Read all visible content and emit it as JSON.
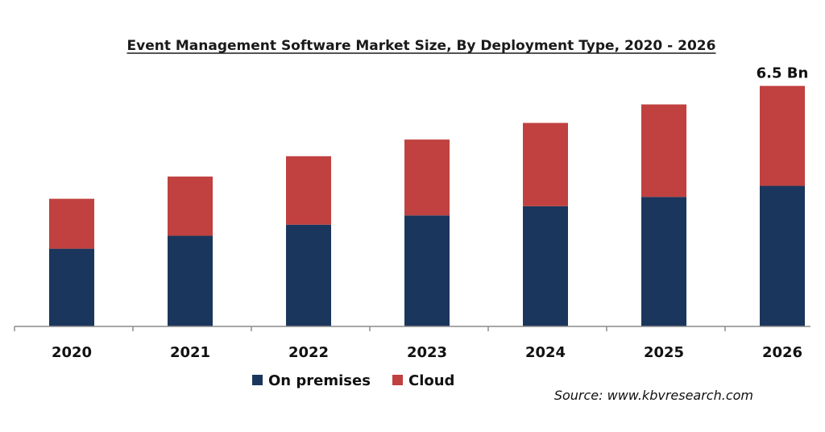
{
  "chart_data": {
    "type": "bar",
    "stacked": true,
    "title": "Event Management Software Market Size, By Deployment Type, 2020 - 2026",
    "categories": [
      "2020",
      "2021",
      "2022",
      "2023",
      "2024",
      "2025",
      "2026"
    ],
    "series": [
      {
        "name": "On premises",
        "color": "#1b365d",
        "values": [
          2.1,
          2.45,
          2.75,
          3.0,
          3.25,
          3.5,
          3.8
        ]
      },
      {
        "name": "Cloud",
        "color": "#c0413f",
        "values": [
          1.35,
          1.6,
          1.85,
          2.05,
          2.25,
          2.5,
          2.7
        ]
      }
    ],
    "annotations": [
      {
        "category": "2026",
        "text": "6.5 Bn"
      }
    ],
    "ylim": [
      0,
      6.6
    ],
    "xlabel": "",
    "ylabel": "",
    "grid": false,
    "legend_position": "bottom",
    "source": "Source: www.kbvresearch.com"
  }
}
